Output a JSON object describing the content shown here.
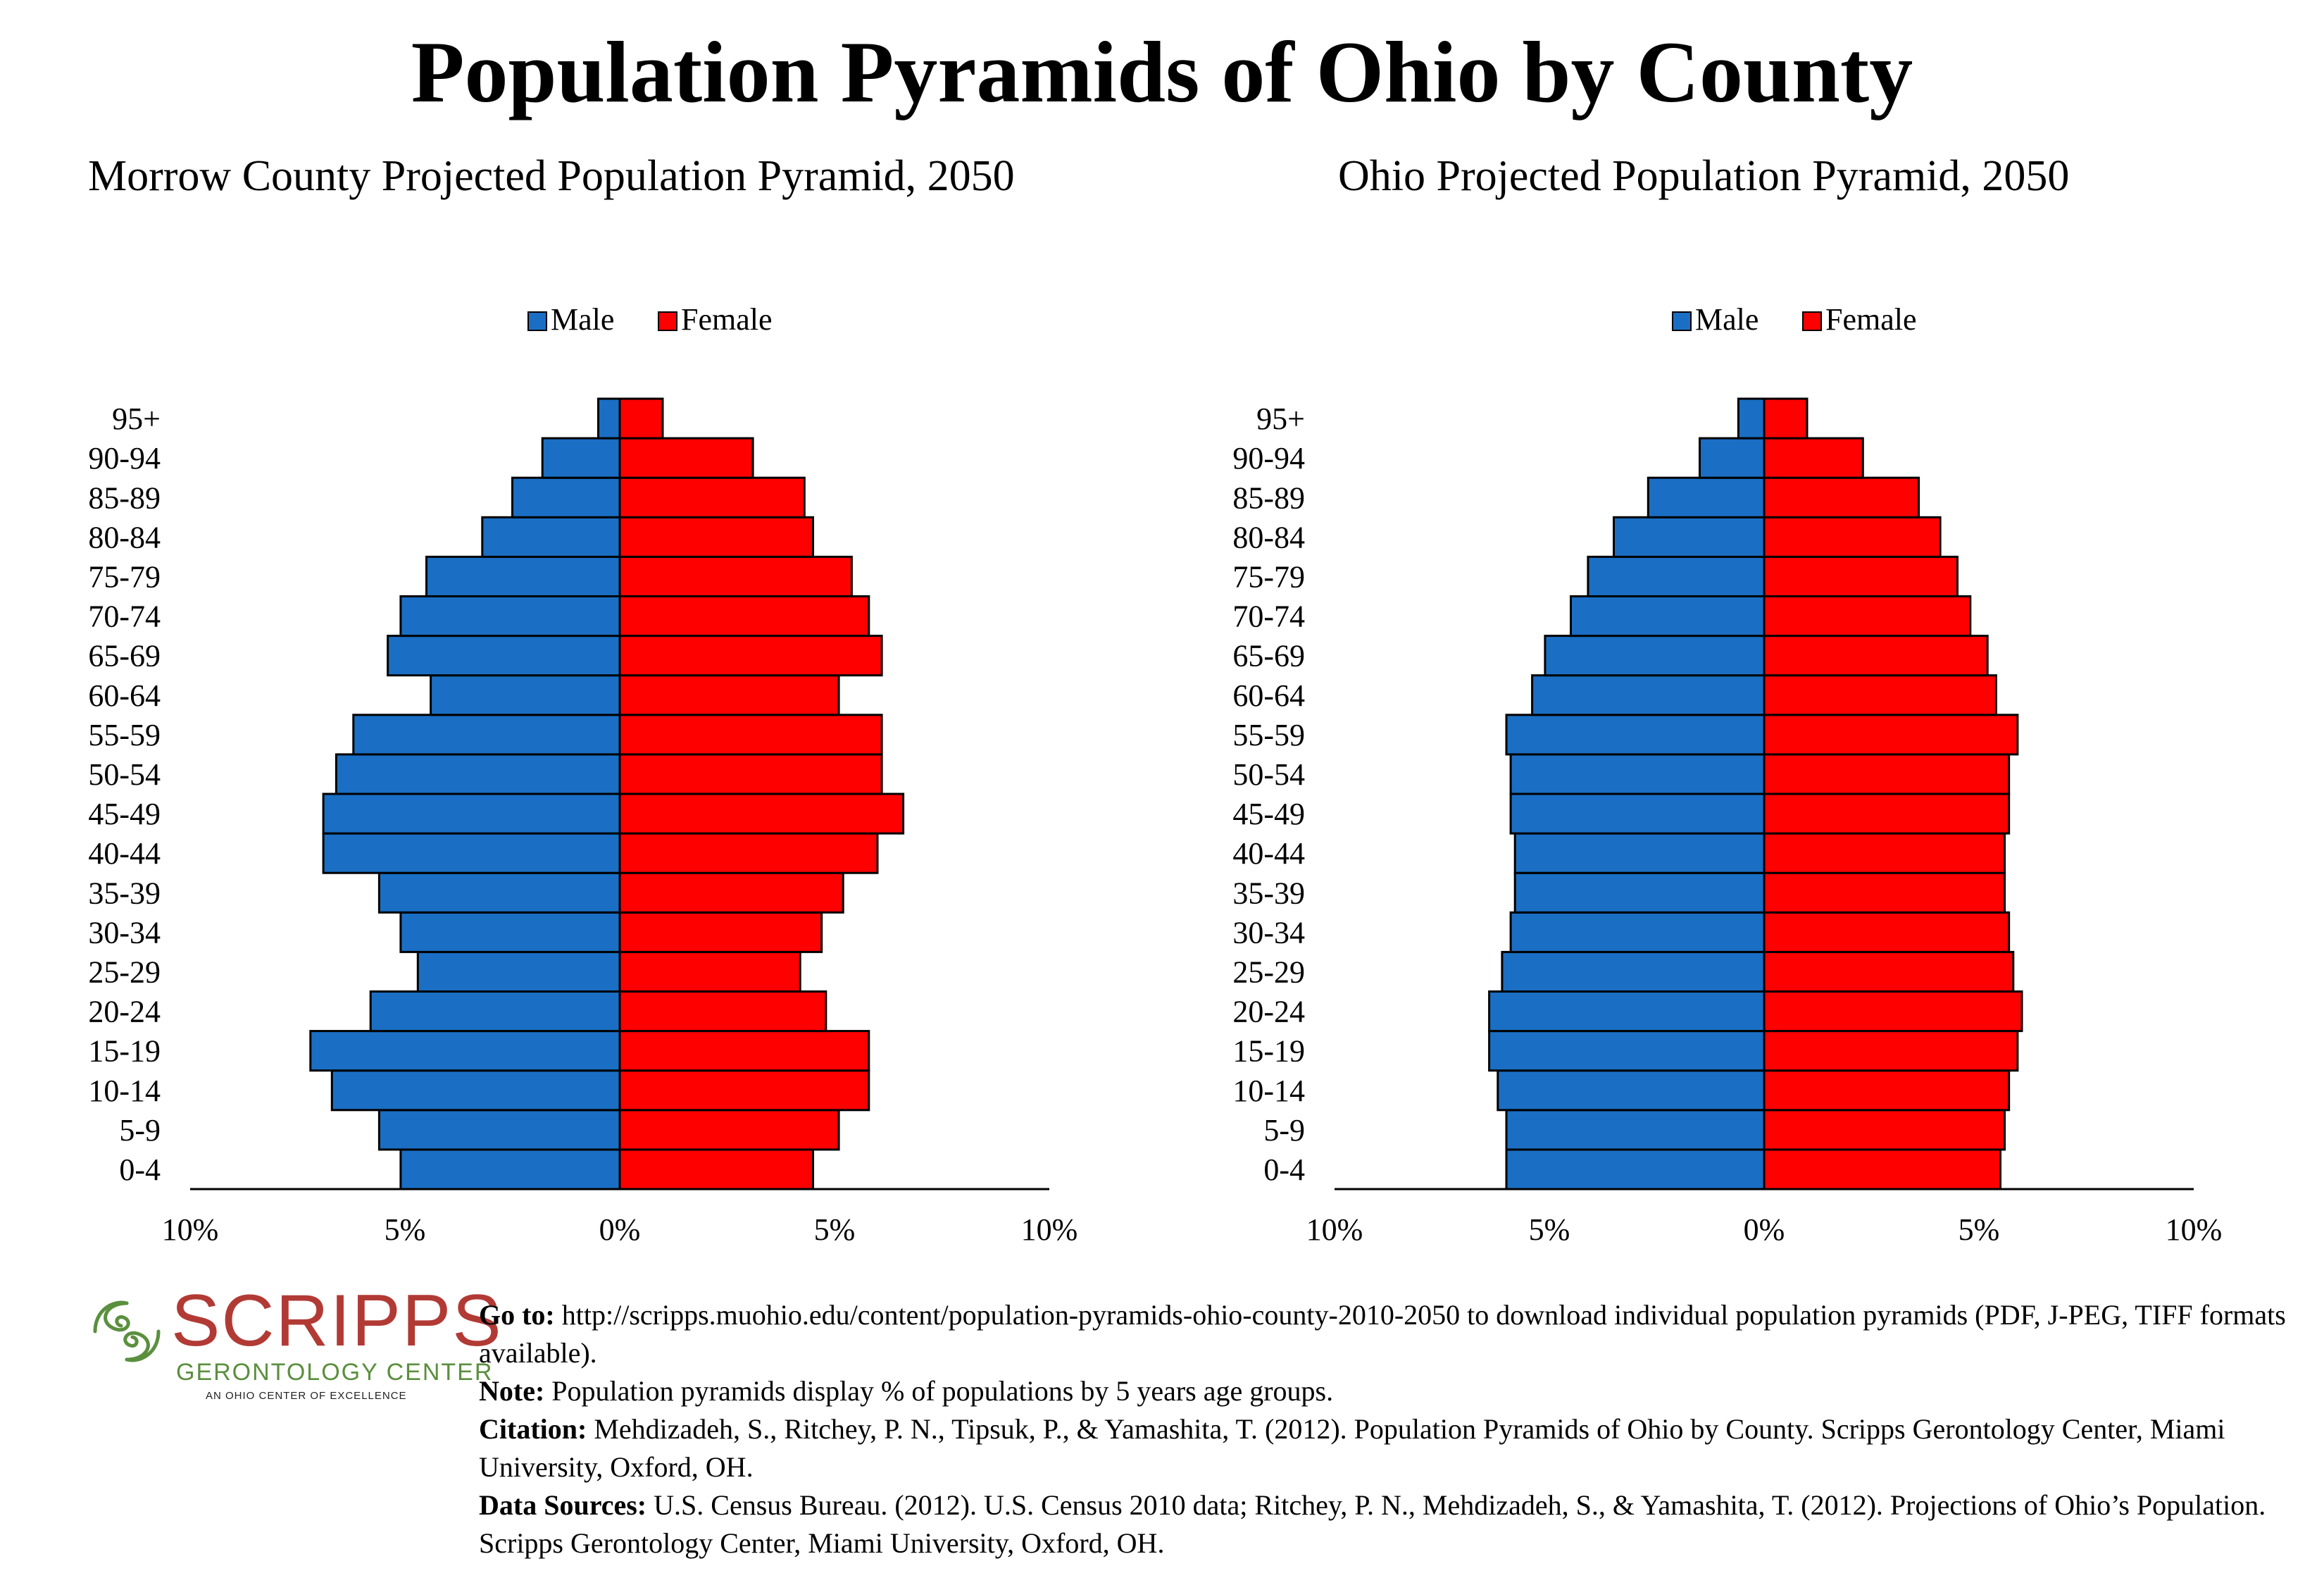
{
  "title": "Population Pyramids of Ohio by County",
  "colors": {
    "male": "#1a6fc4",
    "female": "#ff0000",
    "logo_red": "#b23a35",
    "logo_green": "#5a8f3e"
  },
  "chart_data": [
    {
      "type": "bar",
      "title": "Morrow County Projected Population Pyramid, 2050",
      "legend": [
        "Male",
        "Female"
      ],
      "legend_position": "top-center",
      "categories": [
        "0-4",
        "5-9",
        "10-14",
        "15-19",
        "20-24",
        "25-29",
        "30-34",
        "35-39",
        "40-44",
        "45-49",
        "50-54",
        "55-59",
        "60-64",
        "65-69",
        "70-74",
        "75-79",
        "80-84",
        "85-89",
        "90-94",
        "95+"
      ],
      "series": [
        {
          "name": "Male",
          "values": [
            5.1,
            5.6,
            6.7,
            7.2,
            5.8,
            4.7,
            5.1,
            5.6,
            6.9,
            6.9,
            6.6,
            6.2,
            4.4,
            5.4,
            5.1,
            4.5,
            3.2,
            2.5,
            1.8,
            0.5
          ]
        },
        {
          "name": "Female",
          "values": [
            4.5,
            5.1,
            5.8,
            5.8,
            4.8,
            4.2,
            4.7,
            5.2,
            6.0,
            6.6,
            6.1,
            6.1,
            5.1,
            6.1,
            5.8,
            5.4,
            4.5,
            4.3,
            3.1,
            1.0
          ]
        }
      ],
      "xlim": [
        -10,
        10
      ],
      "x_ticks": [
        "10%",
        "5%",
        "0%",
        "5%",
        "10%"
      ]
    },
    {
      "type": "bar",
      "title": "Ohio Projected Population Pyramid, 2050",
      "legend": [
        "Male",
        "Female"
      ],
      "legend_position": "top-center",
      "categories": [
        "0-4",
        "5-9",
        "10-14",
        "15-19",
        "20-24",
        "25-29",
        "30-34",
        "35-39",
        "40-44",
        "45-49",
        "50-54",
        "55-59",
        "60-64",
        "65-69",
        "70-74",
        "75-79",
        "80-84",
        "85-89",
        "90-94",
        "95+"
      ],
      "series": [
        {
          "name": "Male",
          "values": [
            6.0,
            6.0,
            6.2,
            6.4,
            6.4,
            6.1,
            5.9,
            5.8,
            5.8,
            5.9,
            5.9,
            6.0,
            5.4,
            5.1,
            4.5,
            4.1,
            3.5,
            2.7,
            1.5,
            0.6
          ]
        },
        {
          "name": "Female",
          "values": [
            5.5,
            5.6,
            5.7,
            5.9,
            6.0,
            5.8,
            5.7,
            5.6,
            5.6,
            5.7,
            5.7,
            5.9,
            5.4,
            5.2,
            4.8,
            4.5,
            4.1,
            3.6,
            2.3,
            1.0
          ]
        }
      ],
      "xlim": [
        -10,
        10
      ],
      "x_ticks": [
        "10%",
        "5%",
        "0%",
        "5%",
        "10%"
      ]
    }
  ],
  "logo": {
    "name": "SCRIPPS",
    "subtitle": "GERONTOLOGY CENTER",
    "tagline": "AN OHIO CENTER OF EXCELLENCE"
  },
  "notes": {
    "goto_label": "Go to:",
    "goto_text": " http://scripps.muohio.edu/content/population-pyramids-ohio-county-2010-2050 to download individual population pyramids (PDF, J-PEG, TIFF formats available).",
    "note_label": "Note:",
    "note_text": " Population pyramids display % of populations by 5 years age groups.",
    "citation_label": "Citation:",
    "citation_text": " Mehdizadeh, S., Ritchey, P. N., Tipsuk, P., & Yamashita, T. (2012). Population Pyramids of Ohio by County. Scripps Gerontology Center, Miami University, Oxford, OH.",
    "sources_label": "Data Sources:",
    "sources_text": " U.S. Census Bureau. (2012). U.S. Census 2010 data; Ritchey, P. N., Mehdizadeh, S., & Yamashita, T. (2012). Projections of Ohio’s Population. Scripps Gerontology Center, Miami University, Oxford, OH."
  }
}
